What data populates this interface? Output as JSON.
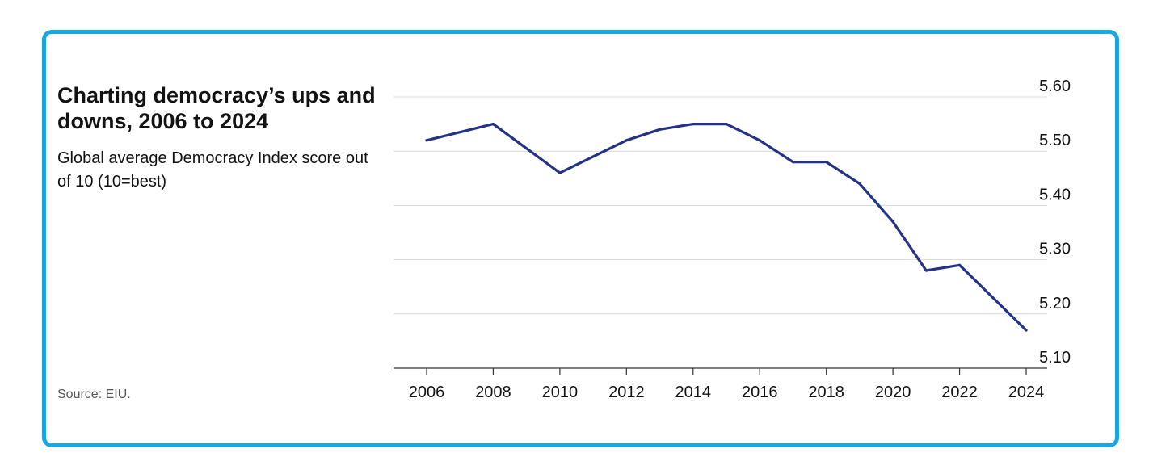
{
  "colors": {
    "border": "#1aa7e0",
    "line": "#253386",
    "grid": "#d9d9d9",
    "axis": "#333333"
  },
  "header": {
    "title": "Charting democracy’s ups and downs, 2006 to 2024",
    "subtitle": "Global average Democracy Index score out of 10 (10=best)"
  },
  "footer": {
    "source": "Source: EIU."
  },
  "chart_data": {
    "type": "line",
    "title": "Charting democracy’s ups and downs, 2006 to 2024",
    "subtitle": "Global average Democracy Index score out of 10 (10=best)",
    "x": [
      2006,
      2008,
      2010,
      2011,
      2012,
      2013,
      2014,
      2015,
      2016,
      2017,
      2018,
      2019,
      2020,
      2021,
      2022,
      2023,
      2024
    ],
    "series": [
      {
        "values": [
          5.52,
          5.55,
          5.46,
          5.49,
          5.52,
          5.54,
          5.55,
          5.55,
          5.52,
          5.48,
          5.48,
          5.44,
          5.37,
          5.28,
          5.29,
          5.23,
          5.17
        ]
      }
    ],
    "xticks": [
      2006,
      2008,
      2010,
      2012,
      2014,
      2016,
      2018,
      2020,
      2022,
      2024
    ],
    "yticks": [
      "5.10",
      "5.20",
      "5.30",
      "5.40",
      "5.50",
      "5.60"
    ],
    "xlim": [
      2006,
      2024
    ],
    "ylim": [
      5.1,
      5.6
    ],
    "xlabel": "",
    "ylabel": "",
    "grid": "horizontal",
    "y_axis_position": "right"
  }
}
